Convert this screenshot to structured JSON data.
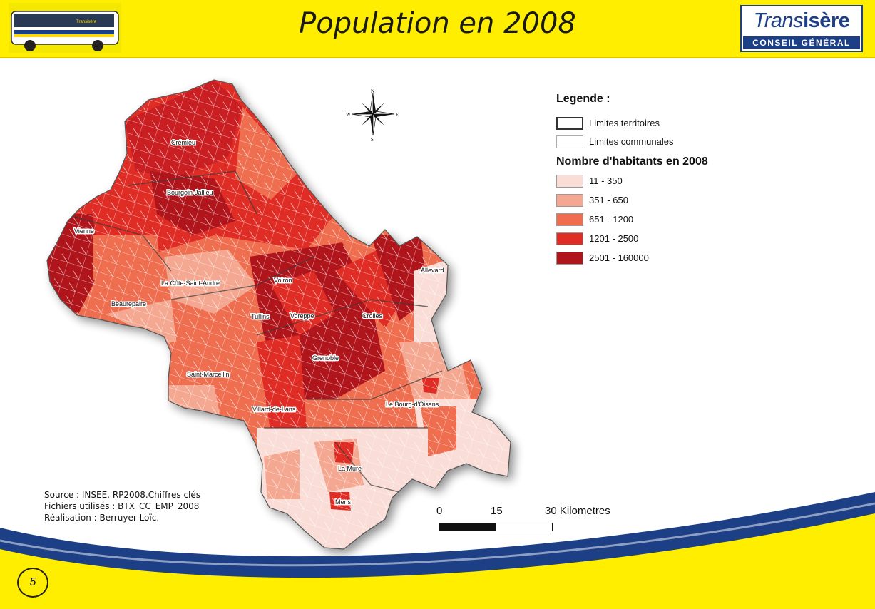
{
  "header": {
    "title": "Population en 2008",
    "logo_top_light": "Trans",
    "logo_top_bold": "isère",
    "logo_bottom": "CONSEIL GÉNÉRAL",
    "bus_sign": "Transisère"
  },
  "compass": {
    "n": "N",
    "s": "S",
    "e": "E",
    "w": "W"
  },
  "legend": {
    "title": "Legende :",
    "boundaries": [
      {
        "label": "Limites territoires"
      },
      {
        "label": "Limites communales"
      }
    ],
    "classes_title": "Nombre d'habitants en 2008",
    "classes": [
      {
        "label": "11 - 350",
        "color": "#f9ddd6"
      },
      {
        "label": "351 - 650",
        "color": "#f5a891"
      },
      {
        "label": "651 - 1200",
        "color": "#ee6e4f"
      },
      {
        "label": "1201 - 2500",
        "color": "#df2c24"
      },
      {
        "label": "2501 - 160000",
        "color": "#b0151c"
      }
    ]
  },
  "towns": [
    {
      "name": "Crémieu"
    },
    {
      "name": "Bourgoin-Jallieu"
    },
    {
      "name": "Vienne"
    },
    {
      "name": "La Côte-Saint-André"
    },
    {
      "name": "Voiron"
    },
    {
      "name": "Beaurepaire"
    },
    {
      "name": "Tullins"
    },
    {
      "name": "Voreppe"
    },
    {
      "name": "Crolles"
    },
    {
      "name": "Allevard"
    },
    {
      "name": "Grenoble"
    },
    {
      "name": "Saint-Marcellin"
    },
    {
      "name": "Villard-de-Lans"
    },
    {
      "name": "Le Bourg-d'Oisans"
    },
    {
      "name": "La Mure"
    },
    {
      "name": "Mens"
    }
  ],
  "source": {
    "line1": "Source :  INSEE. RP2008.Chiffres clés",
    "line2": "Fichiers utilisés : BTX_CC_EMP_2008",
    "line3": "Réalisation : Berruyer Loïc."
  },
  "scale": {
    "t0": "0",
    "t1": "15",
    "t2": "30 Kilometres"
  },
  "page_number": "5",
  "colors": {
    "header_yellow": "#ffee00",
    "swoosh_blue": "#1d3f86",
    "swoosh_yellow": "#ffee00"
  }
}
